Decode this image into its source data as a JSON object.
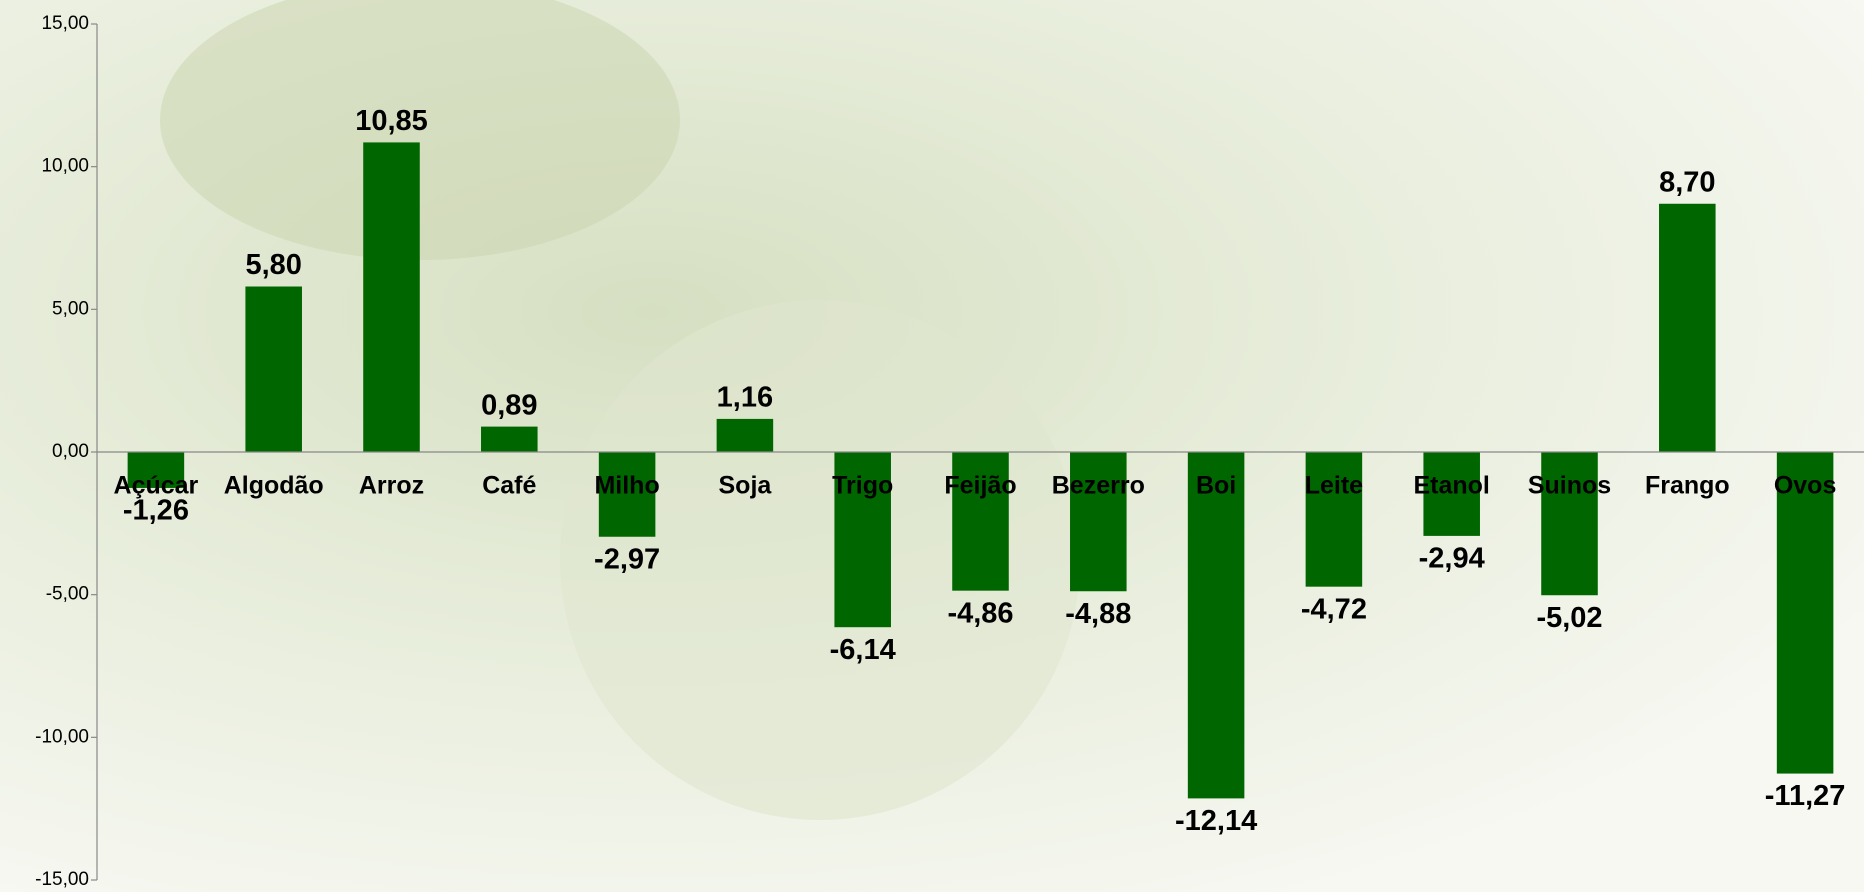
{
  "chart_data": {
    "type": "bar",
    "categories": [
      "Açúcar",
      "Algodão",
      "Arroz",
      "Café",
      "Milho",
      "Soja",
      "Trigo",
      "Feijão",
      "Bezerro",
      "Boi",
      "Leite",
      "Etanol",
      "Suinos",
      "Frango",
      "Ovos"
    ],
    "values": [
      -1.26,
      5.8,
      10.85,
      0.89,
      -2.97,
      1.16,
      -6.14,
      -4.86,
      -4.88,
      -12.14,
      -4.72,
      -2.94,
      -5.02,
      8.7,
      -11.27
    ],
    "value_labels": [
      "-1,26",
      "5,80",
      "10,85",
      "0,89",
      "-2,97",
      "1,16",
      "-6,14",
      "-4,86",
      "-4,88",
      "-12,14",
      "-4,72",
      "-2,94",
      "-5,02",
      "8,70",
      "-11,27"
    ],
    "color": "#006600",
    "ylim": [
      -15,
      15
    ],
    "yticks": [
      {
        "value": -15,
        "label": "-15,00"
      },
      {
        "value": -10,
        "label": "-10,00"
      },
      {
        "value": -5,
        "label": "-5,00"
      },
      {
        "value": 0,
        "label": "0,00"
      },
      {
        "value": 5,
        "label": "5,00"
      },
      {
        "value": 10,
        "label": "10,00"
      },
      {
        "value": 15,
        "label": "15,00"
      }
    ],
    "grid": false
  }
}
